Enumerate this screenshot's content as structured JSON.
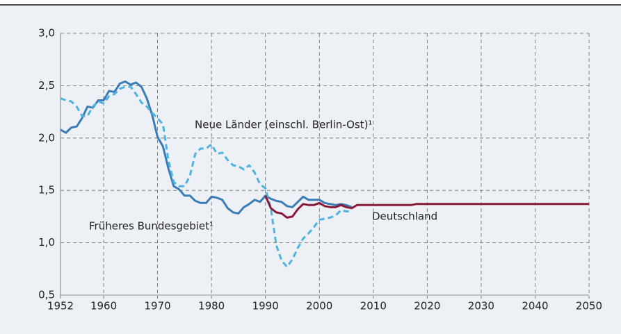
{
  "chart_data": {
    "type": "line",
    "series": [
      {
        "name": "Früheres Bundesgebiet¹",
        "color": "#3a7cb8",
        "style": "solid",
        "x": [
          1952,
          1953,
          1954,
          1955,
          1956,
          1957,
          1958,
          1959,
          1960,
          1961,
          1962,
          1963,
          1964,
          1965,
          1966,
          1967,
          1968,
          1969,
          1970,
          1971,
          1972,
          1973,
          1974,
          1975,
          1976,
          1977,
          1978,
          1979,
          1980,
          1981,
          1982,
          1983,
          1984,
          1985,
          1986,
          1987,
          1988,
          1989,
          1990,
          1991,
          1992,
          1993,
          1994,
          1995,
          1996,
          1997,
          1998,
          1999,
          2000,
          2001,
          2002,
          2003,
          2004,
          2005,
          2006
        ],
        "values": [
          2.08,
          2.05,
          2.1,
          2.11,
          2.19,
          2.3,
          2.29,
          2.36,
          2.36,
          2.45,
          2.44,
          2.52,
          2.54,
          2.51,
          2.53,
          2.49,
          2.38,
          2.22,
          2.01,
          1.92,
          1.71,
          1.54,
          1.51,
          1.45,
          1.45,
          1.4,
          1.38,
          1.38,
          1.44,
          1.43,
          1.41,
          1.33,
          1.29,
          1.28,
          1.34,
          1.37,
          1.41,
          1.39,
          1.45,
          1.42,
          1.4,
          1.39,
          1.35,
          1.34,
          1.39,
          1.44,
          1.41,
          1.41,
          1.41,
          1.38,
          1.37,
          1.36,
          1.37,
          1.36,
          1.34
        ]
      },
      {
        "name": "Neue Länder (einschl. Berlin-Ost)¹",
        "color": "#4fb3e0",
        "style": "dashed",
        "x": [
          1952,
          1953,
          1954,
          1955,
          1956,
          1957,
          1958,
          1959,
          1960,
          1961,
          1962,
          1963,
          1964,
          1965,
          1966,
          1967,
          1968,
          1969,
          1970,
          1971,
          1972,
          1973,
          1974,
          1975,
          1976,
          1977,
          1978,
          1979,
          1980,
          1981,
          1982,
          1983,
          1984,
          1985,
          1986,
          1987,
          1988,
          1989,
          1990,
          1991,
          1992,
          1993,
          1994,
          1995,
          1996,
          1997,
          1998,
          1999,
          2000,
          2001,
          2002,
          2003,
          2004,
          2005,
          2006
        ],
        "values": [
          2.38,
          2.36,
          2.35,
          2.3,
          2.21,
          2.21,
          2.3,
          2.35,
          2.33,
          2.4,
          2.42,
          2.47,
          2.49,
          2.49,
          2.42,
          2.34,
          2.3,
          2.24,
          2.19,
          2.13,
          1.79,
          1.58,
          1.54,
          1.54,
          1.64,
          1.85,
          1.9,
          1.9,
          1.94,
          1.85,
          1.86,
          1.79,
          1.74,
          1.73,
          1.7,
          1.74,
          1.67,
          1.56,
          1.52,
          1.33,
          0.98,
          0.83,
          0.77,
          0.84,
          0.95,
          1.04,
          1.09,
          1.15,
          1.22,
          1.23,
          1.24,
          1.26,
          1.31,
          1.3,
          1.3
        ]
      },
      {
        "name": "Deutschland",
        "color": "#8b1a3a",
        "style": "solid",
        "x": [
          1990,
          1991,
          1992,
          1993,
          1994,
          1995,
          1996,
          1997,
          1998,
          1999,
          2000,
          2001,
          2002,
          2003,
          2004,
          2005,
          2006,
          2007,
          2010,
          2017,
          2018,
          2050
        ],
        "values": [
          1.45,
          1.33,
          1.29,
          1.28,
          1.24,
          1.25,
          1.32,
          1.37,
          1.36,
          1.36,
          1.38,
          1.35,
          1.34,
          1.34,
          1.36,
          1.34,
          1.33,
          1.36,
          1.36,
          1.36,
          1.37,
          1.37
        ]
      }
    ],
    "xlim": [
      1952,
      2050
    ],
    "xticks": [
      1952,
      1960,
      1970,
      1980,
      1990,
      2000,
      2010,
      2020,
      2030,
      2040,
      2050
    ],
    "ylim": [
      0.5,
      3.0
    ],
    "yticks": [
      {
        "value": 0.5,
        "label": "0,5"
      },
      {
        "value": 1.0,
        "label": "1,0"
      },
      {
        "value": 1.5,
        "label": "1,5"
      },
      {
        "value": 2.0,
        "label": "2,0"
      },
      {
        "value": 2.5,
        "label": "2,5"
      },
      {
        "value": 3.0,
        "label": "3,0"
      }
    ],
    "grid": true
  }
}
